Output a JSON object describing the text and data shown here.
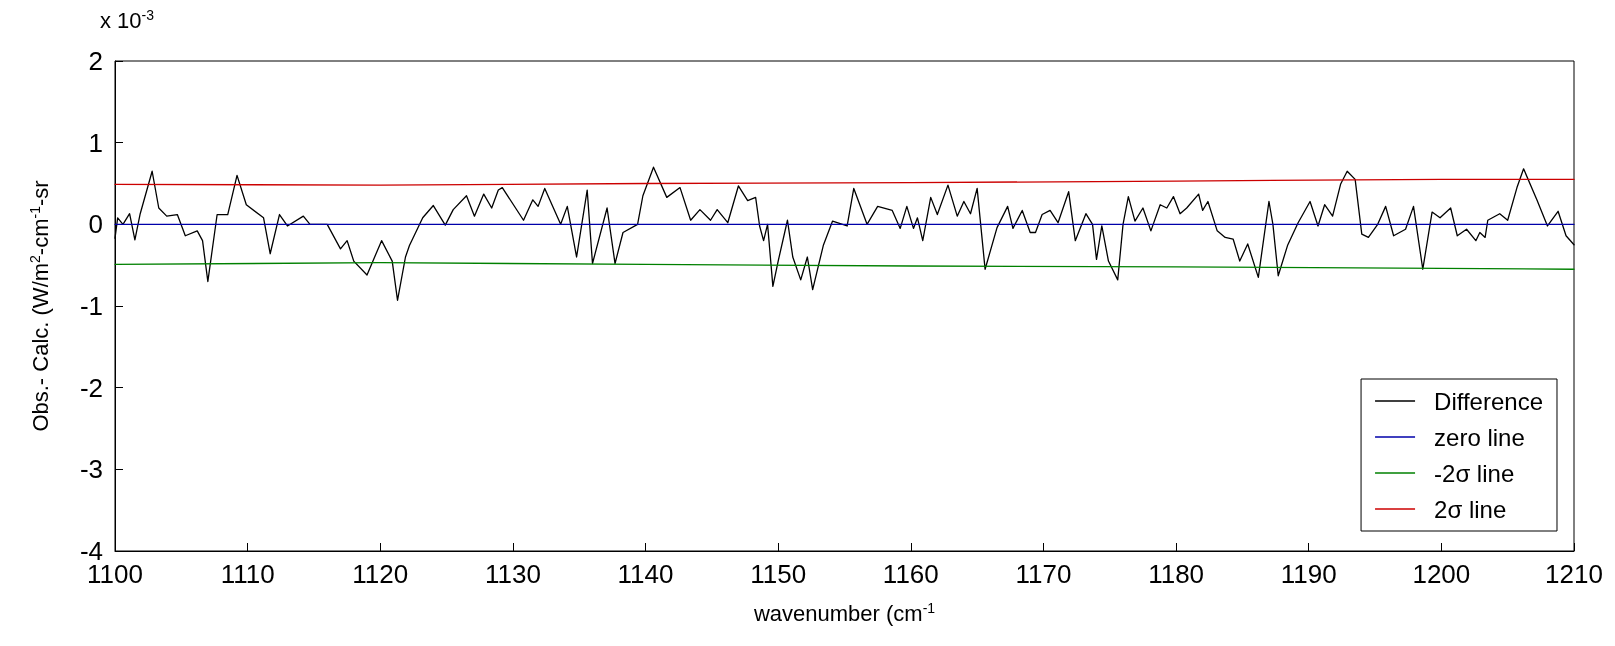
{
  "chart_data": {
    "type": "line",
    "xlabel": "wavenumber (cm$^{-1}$",
    "ylabel": "Obs.- Calc. (W/m$^{2}$-cm$^{-1}$-sr",
    "annotations": [
      "x 10$^{-3}$"
    ],
    "xlim": [
      1100,
      1210
    ],
    "xticks": [
      1100,
      1110,
      1120,
      1130,
      1140,
      1150,
      1160,
      1170,
      1180,
      1190,
      1200,
      1210
    ],
    "ylim": [
      -4,
      2
    ],
    "yticks": [
      -4,
      -3,
      -2,
      -1,
      0,
      1,
      2
    ],
    "grid": false,
    "legend": "bottom right",
    "marker": "none",
    "line_style": "solid",
    "series": [
      {
        "name": "Difference",
        "color": "#000000",
        "x": [
          1100,
          1100.2,
          1100.6,
          1101.1,
          1101.5,
          1101.9,
          1102.8,
          1103.3,
          1103.9,
          1104.7,
          1105.3,
          1106.2,
          1106.6,
          1107,
          1107.7,
          1108.5,
          1109.2,
          1109.9,
          1111.2,
          1111.7,
          1112.4,
          1113,
          1114.2,
          1114.7,
          1116,
          1117,
          1117.5,
          1118,
          1119,
          1120.1,
          1120.9,
          1121.3,
          1121.9,
          1122.2,
          1123.2,
          1124,
          1124.9,
          1125.5,
          1126.5,
          1127.1,
          1127.8,
          1128.4,
          1128.9,
          1129.2,
          1130.8,
          1131.5,
          1131.9,
          1132.4,
          1133.6,
          1134.1,
          1134.8,
          1135.6,
          1136,
          1137.1,
          1137.7,
          1138.3,
          1139.4,
          1139.8,
          1140.6,
          1141.6,
          1142.6,
          1143.4,
          1144.1,
          1144.9,
          1145.4,
          1146.2,
          1147,
          1147.7,
          1148.3,
          1148.6,
          1148.9,
          1149.2,
          1149.6,
          1150,
          1150.7,
          1151.1,
          1151.7,
          1152.2,
          1152.6,
          1153.4,
          1154.1,
          1155.2,
          1155.7,
          1156.7,
          1157.5,
          1158.6,
          1159.2,
          1159.7,
          1160.2,
          1160.5,
          1160.9,
          1161.5,
          1162,
          1162.8,
          1163.5,
          1164,
          1164.5,
          1165,
          1165.6,
          1166.5,
          1167.3,
          1167.7,
          1168.4,
          1169,
          1169.4,
          1169.9,
          1170.5,
          1171.1,
          1171.9,
          1172.4,
          1173.2,
          1173.7,
          1174,
          1174.4,
          1174.9,
          1175.6,
          1176,
          1176.4,
          1176.9,
          1177.5,
          1178.1,
          1178.8,
          1179.3,
          1179.8,
          1180.3,
          1180.8,
          1181.7,
          1182,
          1182.4,
          1183.1,
          1183.7,
          1184.3,
          1184.8,
          1185.4,
          1186.2,
          1187,
          1187.3,
          1187.7,
          1188.4,
          1189.2,
          1190.1,
          1190.7,
          1191.2,
          1191.8,
          1192.4,
          1192.9,
          1193.5,
          1194,
          1194.5,
          1195.2,
          1195.8,
          1196.4,
          1197.3,
          1197.9,
          1198.6,
          1199.3,
          1199.9,
          1200.7,
          1201.2,
          1201.9,
          1202.6,
          1202.9,
          1203.3,
          1203.5,
          1204.4,
          1205,
          1205.7,
          1206.2,
          1207.2,
          1208,
          1208.8,
          1209.4,
          1210
        ],
        "values": [
          -0.17,
          0.08,
          0,
          0.13,
          -0.19,
          0.13,
          0.65,
          0.2,
          0.1,
          0.12,
          -0.14,
          -0.08,
          -0.2,
          -0.7,
          0.12,
          0.12,
          0.6,
          0.24,
          0.08,
          -0.36,
          0.12,
          -0.02,
          0.1,
          0,
          0,
          -0.3,
          -0.2,
          -0.45,
          -0.62,
          -0.2,
          -0.45,
          -0.93,
          -0.4,
          -0.26,
          0.08,
          0.23,
          -0.01,
          0.18,
          0.35,
          0.1,
          0.37,
          0.2,
          0.42,
          0.45,
          0.05,
          0.3,
          0.22,
          0.44,
          0,
          0.22,
          -0.4,
          0.42,
          -0.48,
          0.2,
          -0.48,
          -0.1,
          0,
          0.35,
          0.7,
          0.33,
          0.45,
          0.05,
          0.18,
          0.05,
          0.18,
          0.02,
          0.47,
          0.29,
          0.33,
          -0.02,
          -0.2,
          0,
          -0.76,
          -0.45,
          0.05,
          -0.4,
          -0.68,
          -0.4,
          -0.8,
          -0.26,
          0.04,
          -0.02,
          0.44,
          0,
          0.22,
          0.17,
          -0.05,
          0.22,
          -0.05,
          0.08,
          -0.2,
          0.33,
          0.12,
          0.48,
          0.1,
          0.28,
          0.13,
          0.44,
          -0.55,
          -0.04,
          0.22,
          -0.05,
          0.17,
          -0.1,
          -0.1,
          0.12,
          0.17,
          0.02,
          0.4,
          -0.2,
          0.13,
          0,
          -0.43,
          -0.02,
          -0.45,
          -0.68,
          0,
          0.34,
          0.04,
          0.2,
          -0.08,
          0.24,
          0.2,
          0.34,
          0.13,
          0.2,
          0.37,
          0.17,
          0.28,
          -0.08,
          -0.16,
          -0.18,
          -0.45,
          -0.24,
          -0.65,
          0.28,
          0,
          -0.63,
          -0.26,
          0.02,
          0.28,
          -0.02,
          0.24,
          0.1,
          0.49,
          0.65,
          0.55,
          -0.12,
          -0.16,
          0,
          0.22,
          -0.14,
          -0.06,
          0.22,
          -0.55,
          0.15,
          0.08,
          0.2,
          -0.14,
          -0.06,
          -0.2,
          -0.1,
          -0.16,
          0.05,
          0.13,
          0.05,
          0.45,
          0.68,
          0.3,
          -0.02,
          0.16,
          -0.14,
          -0.25
        ]
      },
      {
        "name": "zero line",
        "color": "#0000aa",
        "x": [
          1100,
          1210
        ],
        "values": [
          0,
          0
        ]
      },
      {
        "name": "-2σ line",
        "color": "#008000",
        "x": [
          1100,
          1120,
          1140,
          1160,
          1180,
          1200,
          1210
        ],
        "values": [
          -0.49,
          -0.47,
          -0.49,
          -0.51,
          -0.52,
          -0.54,
          -0.55
        ]
      },
      {
        "name": "2σ line",
        "color": "#cc0000",
        "x": [
          1100,
          1120,
          1140,
          1160,
          1180,
          1200,
          1210
        ],
        "values": [
          0.49,
          0.48,
          0.5,
          0.51,
          0.53,
          0.55,
          0.55
        ]
      }
    ]
  }
}
